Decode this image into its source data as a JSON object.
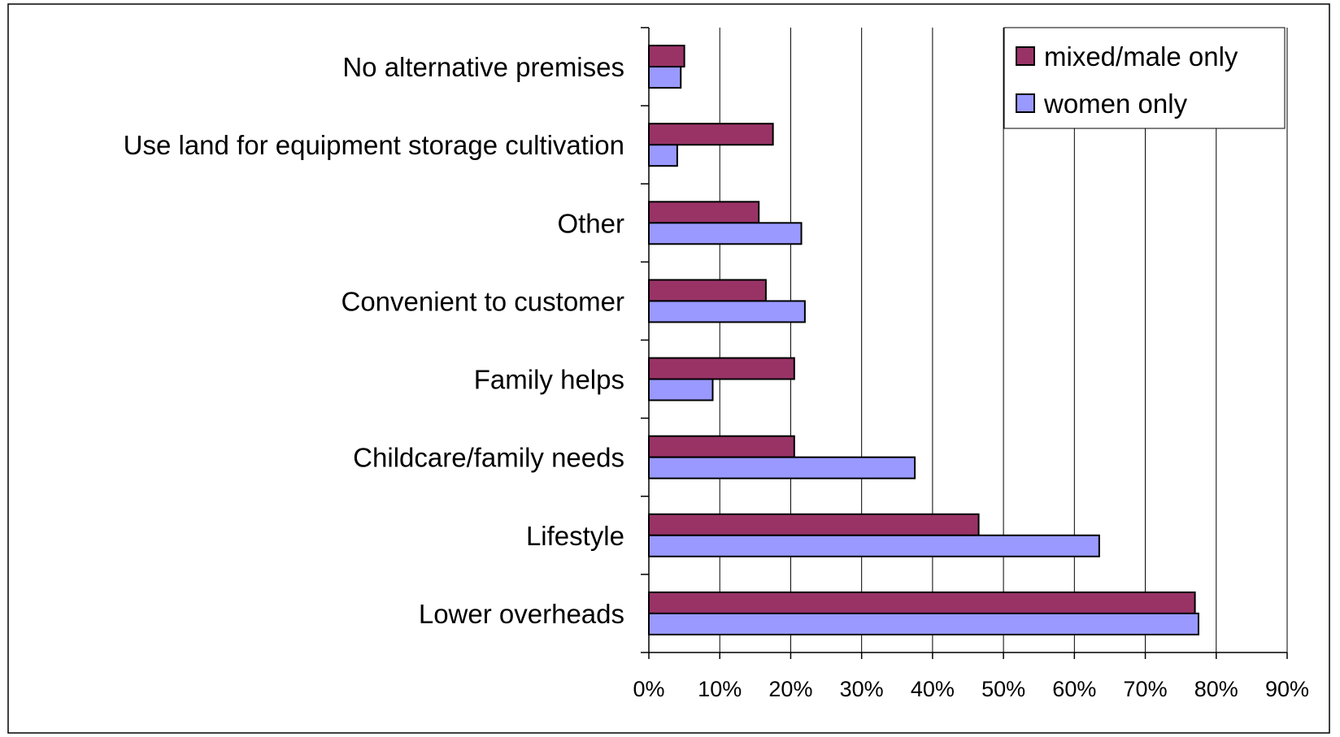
{
  "chart_data": {
    "type": "bar",
    "orientation": "horizontal",
    "categories": [
      "No alternative premises",
      "Use land for equipment storage cultivation",
      "Other",
      "Convenient to customer",
      "Family helps",
      "Childcare/family needs",
      "Lifestyle",
      "Lower overheads"
    ],
    "series": [
      {
        "name": "mixed/male only",
        "color": "#993366",
        "values": [
          5,
          17.5,
          15.5,
          16.5,
          20.5,
          20.5,
          46.5,
          77
        ]
      },
      {
        "name": "women only",
        "color": "#9999ff",
        "values": [
          4.5,
          4,
          21.5,
          22,
          9,
          37.5,
          63.5,
          77.5
        ]
      }
    ],
    "xlim": [
      0,
      90
    ],
    "x_ticks": [
      "0%",
      "10%",
      "20%",
      "30%",
      "40%",
      "50%",
      "60%",
      "70%",
      "80%",
      "90%"
    ],
    "x_tick_values": [
      0,
      10,
      20,
      30,
      40,
      50,
      60,
      70,
      80,
      90
    ],
    "grid": "vertical",
    "legend": "top-right",
    "title": "",
    "xlabel": "",
    "ylabel": ""
  }
}
